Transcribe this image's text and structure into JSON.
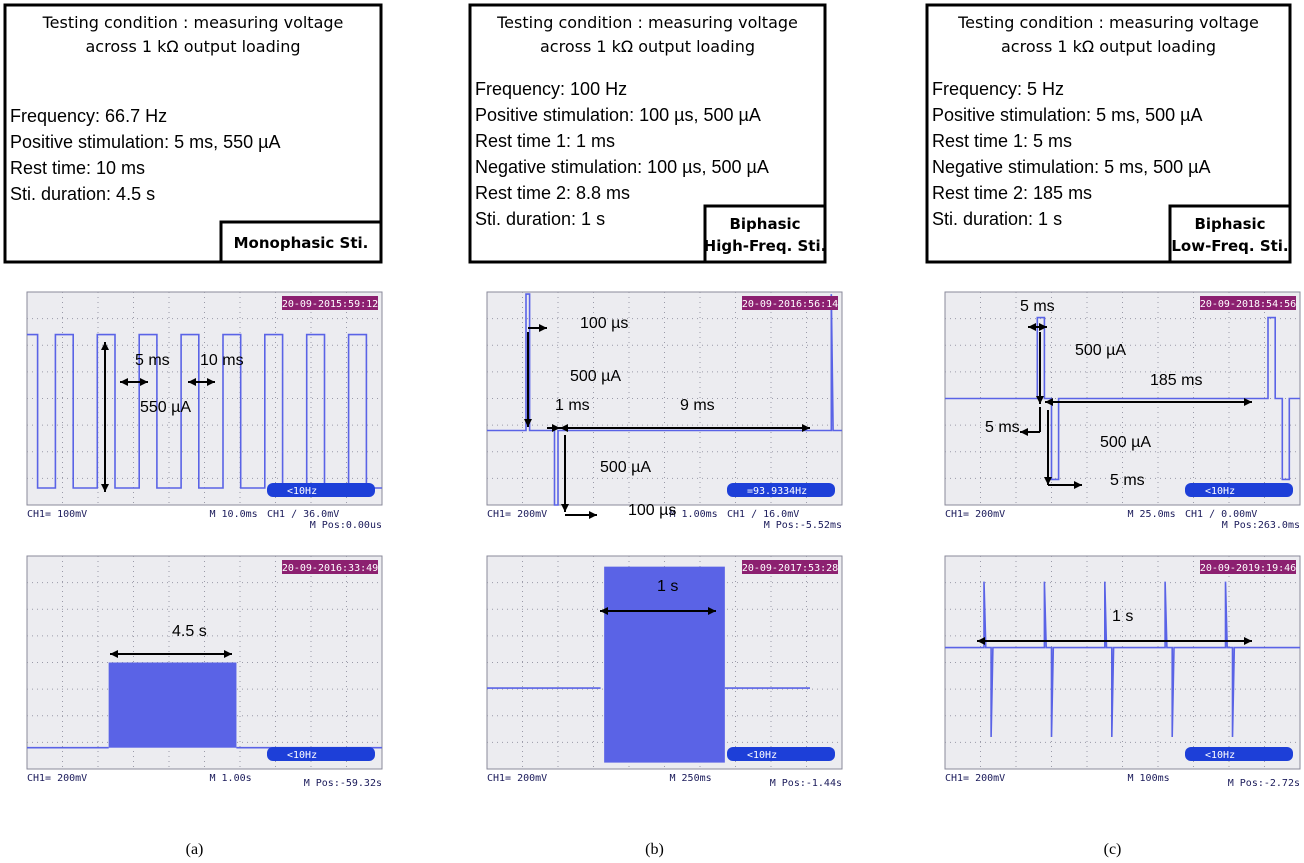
{
  "panels": [
    {
      "box": {
        "condition": [
          "Testing condition : measuring voltage",
          "across 1 kΩ output loading"
        ],
        "params": [
          "Frequency: 66.7 Hz",
          "Positive stimulation: 5 ms, 550 µA",
          "Rest time: 10 ms",
          "Sti. duration: 4.5 s"
        ],
        "tag": [
          "Monophasic Sti."
        ]
      },
      "scopes": [
        {
          "timestamp": "20-09-2015:59:12",
          "channel": "CH1= 100mV",
          "timebase": "M 10.0ms",
          "trigger": "CH1 ∕ 36.0mV",
          "position": "M Pos:0.00us",
          "frequency": "<10Hz",
          "annotations": [
            "5 ms",
            "10 ms",
            "550 µA"
          ]
        },
        {
          "timestamp": "20-09-2016:33:49",
          "channel": "CH1= 200mV",
          "timebase": "M 1.00s",
          "position": "M Pos:-59.32s",
          "frequency": "<10Hz",
          "annotations": [
            "4.5 s"
          ]
        }
      ],
      "caption": "(a)"
    },
    {
      "box": {
        "condition": [
          "Testing condition : measuring voltage",
          "across 1 kΩ output loading"
        ],
        "params": [
          "Frequency: 100 Hz",
          "Positive stimulation: 100 µs, 500 µA",
          "Rest time 1: 1 ms",
          "Negative stimulation: 100 µs, 500 µA",
          "Rest time 2: 8.8 ms",
          "Sti. duration: 1 s"
        ],
        "tag": [
          "Biphasic",
          "High-Freq. Sti."
        ]
      },
      "scopes": [
        {
          "timestamp": "20-09-2016:56:14",
          "channel": "CH1= 200mV",
          "timebase": "M 1.00ms",
          "trigger": "CH1 ∕ 16.0mV",
          "position": "M Pos:-5.52ms",
          "frequency": "=93.9334Hz",
          "annotations": [
            "100 µs",
            "500 µA",
            "1 ms",
            "9 ms",
            "500 µA",
            "100 µs"
          ]
        },
        {
          "timestamp": "20-09-2017:53:28",
          "channel": "CH1= 200mV",
          "timebase": "M 250ms",
          "position": "M Pos:-1.44s",
          "frequency": "<10Hz",
          "annotations": [
            "1 s"
          ]
        }
      ],
      "caption": "(b)"
    },
    {
      "box": {
        "condition": [
          "Testing condition : measuring voltage",
          "across 1 kΩ output loading"
        ],
        "params": [
          "Frequency: 5 Hz",
          "Positive stimulation: 5 ms, 500 µA",
          "Rest time 1: 5 ms",
          "Negative stimulation: 5 ms, 500 µA",
          "Rest time 2: 185 ms",
          "Sti. duration: 1 s"
        ],
        "tag": [
          "Biphasic",
          "Low-Freq. Sti."
        ]
      },
      "scopes": [
        {
          "timestamp": "20-09-2018:54:56",
          "channel": "CH1= 200mV",
          "timebase": "M 25.0ms",
          "trigger": "CH1 ∕ 0.00mV",
          "position": "M Pos:263.0ms",
          "frequency": "<10Hz",
          "annotations": [
            "5 ms",
            "500 µA",
            "185 ms",
            "5 ms",
            "500 µA",
            "5 ms"
          ]
        },
        {
          "timestamp": "20-09-2019:19:46",
          "channel": "CH1= 200mV",
          "timebase": "M 100ms",
          "position": "M Pos:-2.72s",
          "frequency": "<10Hz",
          "annotations": [
            "1 s"
          ]
        }
      ],
      "caption": "(c)"
    }
  ]
}
